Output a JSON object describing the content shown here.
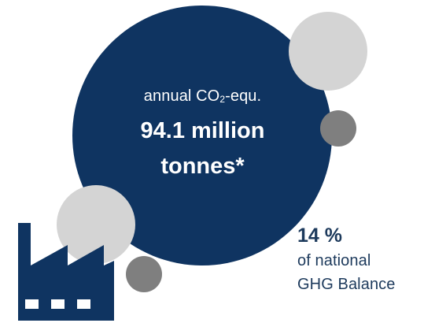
{
  "colors": {
    "navy": "#0f3461",
    "light_grey": "#d4d4d4",
    "dark_grey": "#7f7f7f",
    "text_navy": "#1d3a5c",
    "white": "#ffffff"
  },
  "icons": [
    "factory-icon"
  ],
  "main": {
    "label_prefix": "annual CO",
    "label_subscript": "2",
    "label_suffix": "-equ.",
    "value_line1": "94.1 million",
    "value_line2": "tonnes*"
  },
  "share": {
    "value": "14 %",
    "caption_line1": "of national",
    "caption_line2": "GHG Balance"
  }
}
